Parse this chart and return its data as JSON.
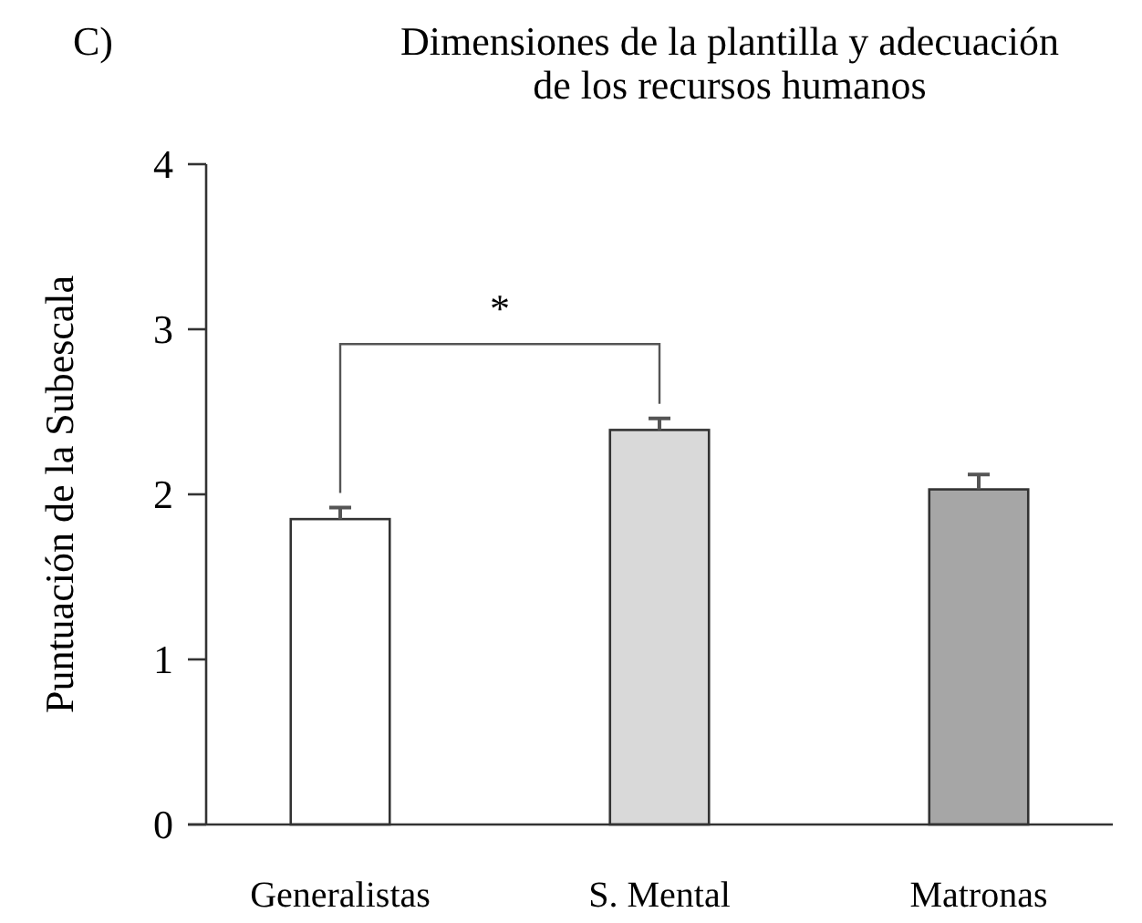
{
  "chart_data": {
    "type": "bar",
    "title": "Dimensiones de la plantilla y adecuación de los recursos humanos",
    "ylabel": "Puntuación de la Subescala",
    "annotations": [
      "C)",
      "*"
    ],
    "categories": [
      "Generalistas",
      "S. Mental",
      "Matronas"
    ],
    "values": [
      1.85,
      2.39,
      2.03
    ],
    "errors": [
      [
        1.85,
        1.92
      ],
      [
        2.39,
        2.46
      ],
      [
        2.03,
        2.12
      ]
    ],
    "colors": [
      "#ffffff",
      "#d9d9d9",
      "#a6a6a6"
    ],
    "ylim": [
      0,
      4
    ],
    "yticks": [
      0,
      1,
      2,
      3,
      4
    ],
    "grid": false
  }
}
